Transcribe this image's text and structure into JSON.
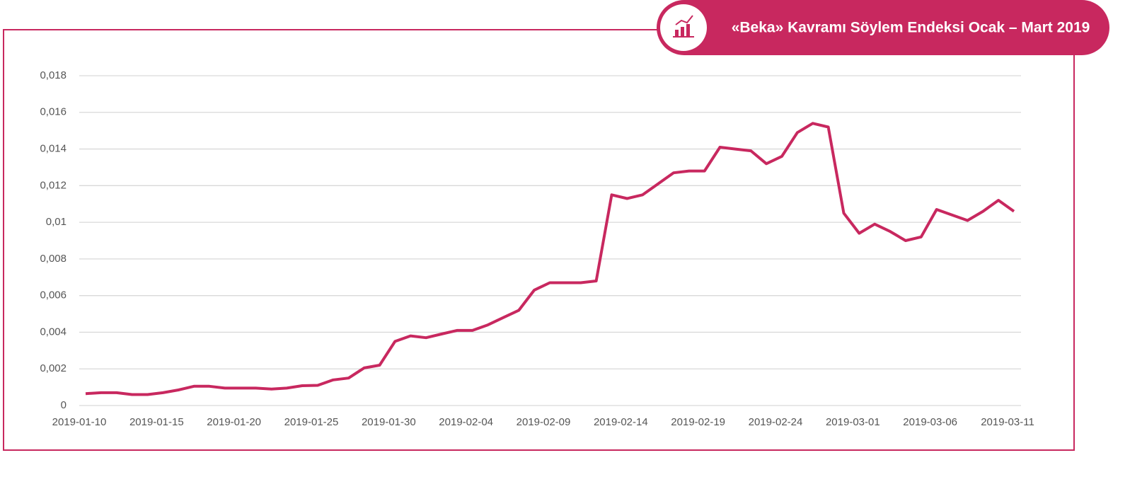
{
  "chart_data": {
    "type": "line",
    "title": "«Beka» Kavramı Söylem Endeksi Ocak – Mart 2019",
    "categories": [
      "2019-01-10",
      null,
      null,
      null,
      null,
      "2019-01-15",
      null,
      null,
      null,
      null,
      "2019-01-20",
      null,
      null,
      null,
      null,
      "2019-01-25",
      null,
      null,
      null,
      null,
      "2019-01-30",
      null,
      null,
      null,
      null,
      "2019-02-04",
      null,
      null,
      null,
      null,
      "2019-02-09",
      null,
      null,
      null,
      null,
      "2019-02-14",
      null,
      null,
      null,
      null,
      "2019-02-19",
      null,
      null,
      null,
      null,
      "2019-02-24",
      null,
      null,
      null,
      null,
      "2019-03-01",
      null,
      null,
      null,
      null,
      "2019-03-06",
      null,
      null,
      null,
      null,
      "2019-03-11"
    ],
    "series": [
      {
        "name": "Söylem Endeksi",
        "color": "#c8285f",
        "values": [
          0.00065,
          0.0007,
          0.0007,
          0.0006,
          0.0006,
          0.0007,
          0.00085,
          0.00105,
          0.00105,
          0.00095,
          0.00095,
          0.00095,
          0.0009,
          0.00095,
          0.00108,
          0.0011,
          0.0014,
          0.0015,
          0.00205,
          0.0022,
          0.0035,
          0.0038,
          0.0037,
          0.0039,
          0.0041,
          0.0041,
          0.0044,
          0.0048,
          0.0052,
          0.0063,
          0.0067,
          0.0067,
          0.0067,
          0.0068,
          0.0115,
          0.0113,
          0.0115,
          0.0121,
          0.0127,
          0.0128,
          0.0128,
          0.0141,
          0.014,
          0.0139,
          0.0132,
          0.0136,
          0.0149,
          0.0154,
          0.0152,
          0.0105,
          0.0094,
          0.0099,
          0.0095,
          0.009,
          0.0092,
          0.0107,
          0.0104,
          0.0101,
          0.0106,
          0.0112,
          0.0106
        ]
      }
    ],
    "ylim": [
      0,
      0.018
    ],
    "yticks": [
      0,
      {
        "value": 0.002,
        "label": "0,002"
      },
      {
        "value": 0.004,
        "label": "0,004"
      },
      {
        "value": 0.006,
        "label": "0,006"
      },
      {
        "value": 0.008,
        "label": "0,008"
      },
      {
        "value": 0.01,
        "label": "0,01"
      },
      {
        "value": 0.012,
        "label": "0,012"
      },
      {
        "value": 0.014,
        "label": "0,014"
      },
      {
        "value": 0.016,
        "label": "0,016"
      },
      {
        "value": 0.018,
        "label": "0,018"
      }
    ],
    "grid": true
  }
}
